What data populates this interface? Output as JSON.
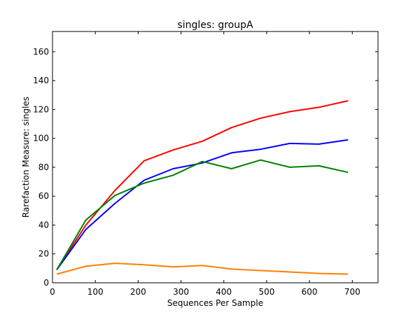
{
  "chart_data": {
    "type": "line",
    "title": "singles: groupA",
    "xlabel": "Sequences Per Sample",
    "ylabel": "Rarefaction Measure: singles",
    "xlim": [
      0,
      760
    ],
    "ylim": [
      0,
      174
    ],
    "xticks": [
      0,
      100,
      200,
      300,
      400,
      500,
      600,
      700
    ],
    "yticks": [
      0,
      20,
      40,
      60,
      80,
      100,
      120,
      140,
      160
    ],
    "grid": false,
    "x": [
      10,
      78,
      146,
      214,
      282,
      350,
      418,
      486,
      554,
      622,
      690
    ],
    "series": [
      {
        "color": "#ff0000",
        "values": [
          9,
          40,
          64,
          84.5,
          92,
          98,
          107.5,
          114,
          118.5,
          121.5,
          126
        ]
      },
      {
        "color": "#0000ff",
        "values": [
          9,
          37,
          55,
          71,
          79,
          83,
          90,
          92.5,
          96.5,
          96,
          99
        ]
      },
      {
        "color": "#008000",
        "values": [
          9,
          43.5,
          60.5,
          69,
          74.5,
          84,
          79,
          85,
          80,
          81,
          76.5
        ]
      },
      {
        "color": "#ff7f00",
        "values": [
          6,
          11.5,
          13.5,
          12.5,
          11,
          12,
          9.5,
          8.5,
          7.5,
          6.5,
          6
        ]
      }
    ]
  }
}
